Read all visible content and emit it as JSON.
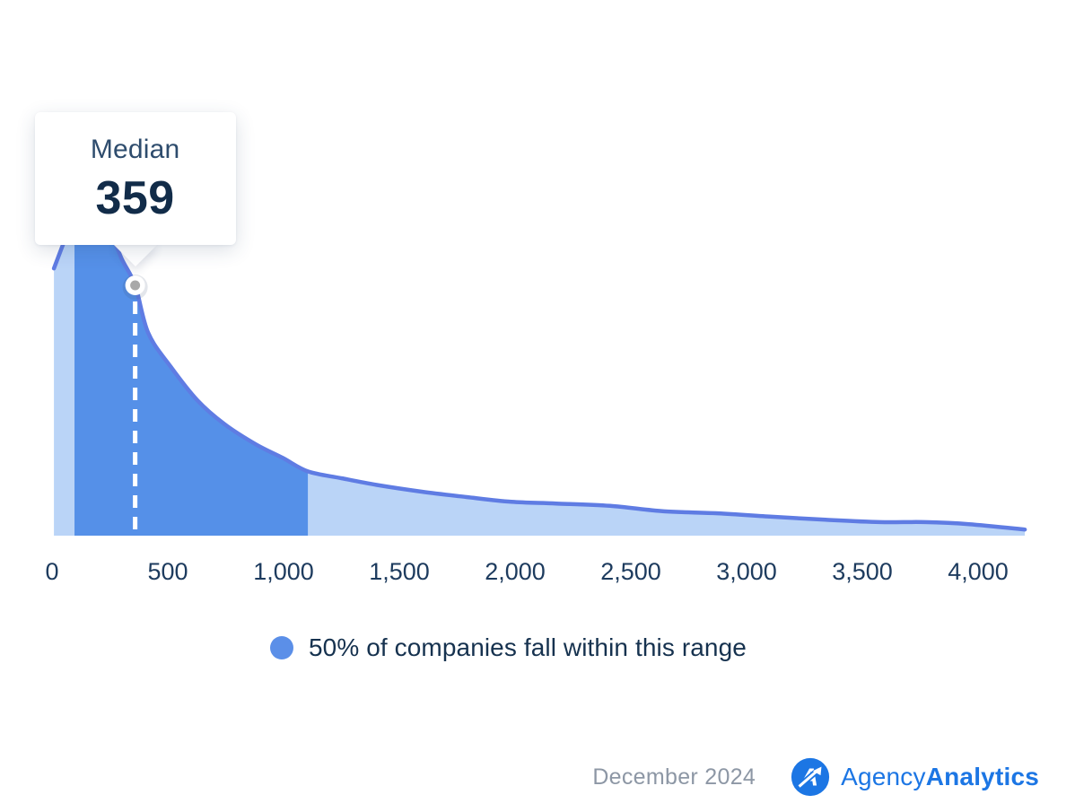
{
  "tooltip": {
    "label": "Median",
    "value": "359"
  },
  "legend": {
    "label": "50% of companies fall within this range"
  },
  "footer": {
    "date": "December 2024",
    "brand_regular": "Agency",
    "brand_bold": "Analytics"
  },
  "colors": {
    "band_fill": "#5590E8",
    "area_fill": "#BAD4F7",
    "curve_stroke": "#5F7CE3",
    "axis_text": "#1D3B5E",
    "legend_dot": "#5B8FE8",
    "median_dash": "#FFFFFF",
    "marker_dot": "#A8A8A8",
    "footer_gray": "#8D97A5",
    "brand_blue": "#1C76E4"
  },
  "chart_data": {
    "type": "area",
    "title": "",
    "xlabel": "",
    "ylabel": "",
    "x_range": [
      0,
      4200
    ],
    "x_tick_values": [
      0,
      500,
      1000,
      1500,
      2000,
      2500,
      3000,
      3500,
      4000
    ],
    "x_tick_labels": [
      "0",
      "500",
      "1,000",
      "1,500",
      "2,000",
      "2,500",
      "3,000",
      "3,500",
      "4,000"
    ],
    "median": 359,
    "band_range": [
      97,
      1105
    ],
    "band_meaning": "50% of companies fall within this range",
    "grid": false,
    "legend_position": "bottom",
    "curve": {
      "y_unit": "relative density (peak = 1)",
      "x": [
        8,
        47,
        105,
        175,
        240,
        300,
        359,
        415,
        512,
        628,
        744,
        880,
        996,
        1105,
        1248,
        1403,
        1597,
        1791,
        1984,
        2178,
        2411,
        2643,
        2876,
        3109,
        3341,
        3574,
        3767,
        3961,
        4202
      ],
      "y": [
        0.79,
        0.86,
        0.96,
        1.0,
        0.92,
        0.82,
        0.74,
        0.6,
        0.5,
        0.4,
        0.33,
        0.27,
        0.23,
        0.19,
        0.17,
        0.15,
        0.13,
        0.114,
        0.1,
        0.095,
        0.088,
        0.072,
        0.066,
        0.056,
        0.047,
        0.04,
        0.04,
        0.034,
        0.018
      ]
    }
  }
}
